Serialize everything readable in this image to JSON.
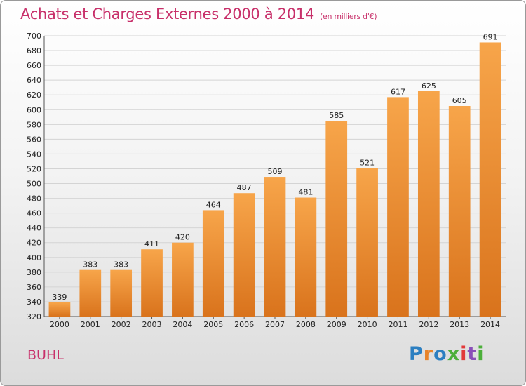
{
  "chart_data": {
    "type": "bar",
    "title": "Achats et Charges Externes 2000 à 2014",
    "subtitle": "(en milliers d'€)",
    "categories": [
      "2000",
      "2001",
      "2002",
      "2003",
      "2004",
      "2005",
      "2006",
      "2007",
      "2008",
      "2009",
      "2010",
      "2011",
      "2012",
      "2013",
      "2014"
    ],
    "values": [
      339,
      383,
      383,
      411,
      420,
      464,
      487,
      509,
      481,
      585,
      521,
      617,
      625,
      605,
      691
    ],
    "ylim": [
      320,
      700
    ],
    "yticks": [
      320,
      340,
      360,
      380,
      400,
      420,
      440,
      460,
      480,
      500,
      520,
      540,
      560,
      580,
      600,
      620,
      640,
      660,
      680,
      700
    ],
    "grid": true,
    "bar_color_light": "#f7a54a",
    "bar_color_dark": "#d9731c"
  },
  "footer": {
    "commune": "BUHL",
    "logo_letters": [
      "P",
      "r",
      "o",
      "x",
      "i",
      "t",
      "i"
    ],
    "logo_colors": [
      "#2c7fc1",
      "#e8842a",
      "#2c7fc1",
      "#4caf3a",
      "#e23a3a",
      "#8a4fb8",
      "#4caf3a"
    ]
  }
}
